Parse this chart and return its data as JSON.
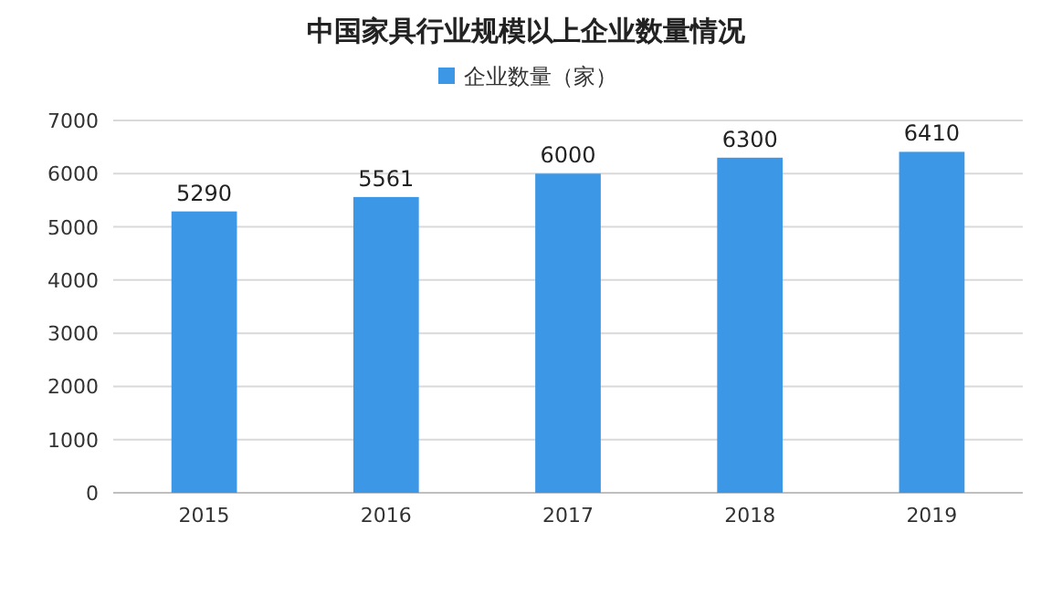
{
  "chart_data": {
    "type": "bar",
    "title": "中国家具行业规模以上企业数量情况",
    "categories": [
      "2015",
      "2016",
      "2017",
      "2018",
      "2019"
    ],
    "series": [
      {
        "name": "企业数量（家）",
        "color": "#3c97e6",
        "values": [
          5290,
          5561,
          6000,
          6300,
          6410
        ]
      }
    ],
    "ylim": [
      0,
      7000
    ],
    "yticks": [
      0,
      1000,
      2000,
      3000,
      4000,
      5000,
      6000,
      7000
    ],
    "grid": "y",
    "legend": "top",
    "data_labels": true
  }
}
